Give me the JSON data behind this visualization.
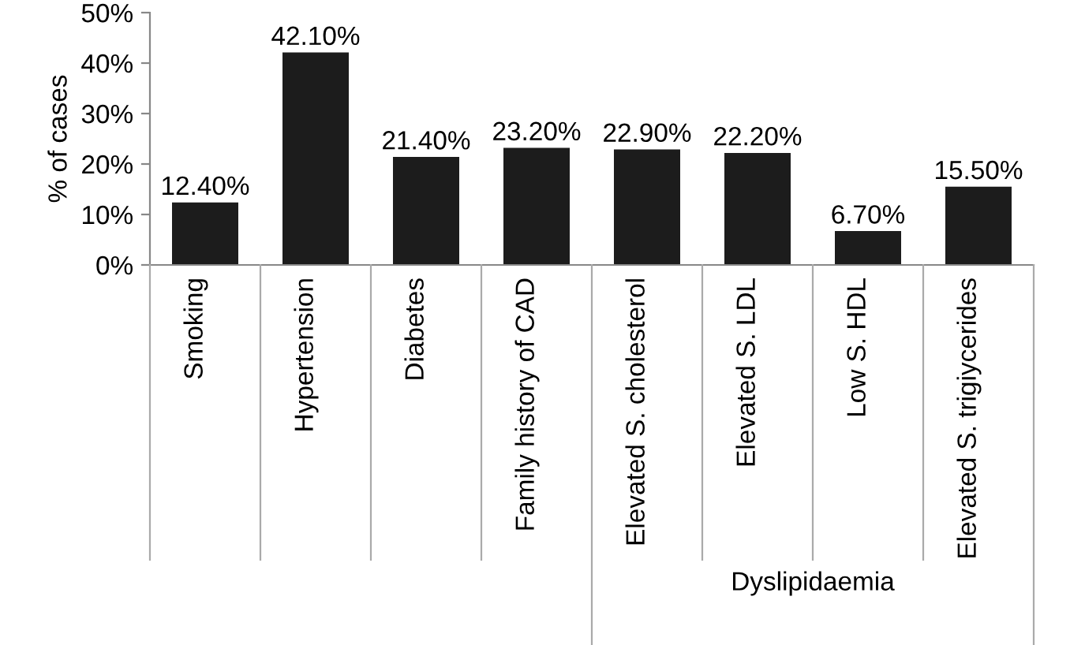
{
  "chart_data": {
    "type": "bar",
    "ylabel": "% of cases",
    "categories": [
      "Smoking",
      "Hypertension",
      "Diabetes",
      "Family history of CAD",
      "Elevated S. cholesterol",
      "Elevated S. LDL",
      "Low S. HDL",
      "Elevated S. trigiycerides"
    ],
    "values": [
      12.4,
      42.1,
      21.4,
      23.2,
      22.9,
      22.2,
      6.7,
      15.5
    ],
    "value_labels": [
      "12.40%",
      "42.10%",
      "21.40%",
      "23.20%",
      "22.90%",
      "22.20%",
      "6.70%",
      "15.50%"
    ],
    "color": "#1c1c1c",
    "ylim": [
      0,
      50
    ],
    "yticks": [
      {
        "value": 0,
        "label": "0%"
      },
      {
        "value": 10,
        "label": "10%"
      },
      {
        "value": 20,
        "label": "20%"
      },
      {
        "value": 30,
        "label": "30%"
      },
      {
        "value": 40,
        "label": "40%"
      },
      {
        "value": 50,
        "label": "50%"
      }
    ],
    "grid": false,
    "legend": false,
    "annotations": [
      "Dyslipidaemia"
    ]
  }
}
